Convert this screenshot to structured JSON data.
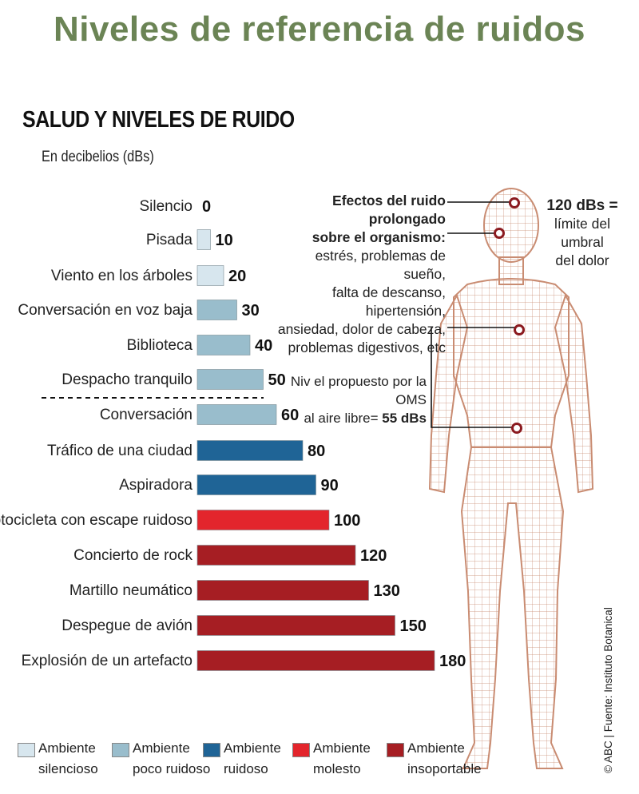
{
  "page_title": "Niveles de referencia de ruidos",
  "chart_data": {
    "type": "bar",
    "title": "SALUD Y NIVELES DE RUIDO",
    "subtitle": "En decibelios (dBs)",
    "unit": "dB",
    "categories": [
      "Silencio",
      "Pisada",
      "Viento en los árboles",
      "Conversación en voz baja",
      "Biblioteca",
      "Despacho tranquilo",
      "Conversación",
      "Tráfico de una ciudad",
      "Aspiradora",
      "Motocicleta con escape ruidoso",
      "Concierto de rock",
      "Martillo neumático",
      "Despegue de avión",
      "Explosión de un artefacto"
    ],
    "values": [
      0,
      10,
      20,
      30,
      40,
      50,
      60,
      80,
      90,
      100,
      120,
      130,
      150,
      180
    ],
    "groups": [
      0,
      0,
      0,
      1,
      1,
      1,
      1,
      2,
      2,
      3,
      4,
      4,
      4,
      4
    ],
    "group_colors": [
      "#d7e6ee",
      "#99bdcc",
      "#1f6496",
      "#e3252c",
      "#a61e23"
    ],
    "legend": [
      {
        "line1": "Ambiente",
        "line2": "silencioso"
      },
      {
        "line1": "Ambiente",
        "line2": "poco ruidoso"
      },
      {
        "line1": "Ambiente",
        "line2": "ruidoso"
      },
      {
        "line1": "Ambiente",
        "line2": "molesto"
      },
      {
        "line1": "Ambiente",
        "line2": "insoportable"
      }
    ],
    "legend_placement": "bottom",
    "grid": false
  },
  "annotations": {
    "effects_title_1": "Efectos del ruido prolongado",
    "effects_title_2": "sobre el  organismo:",
    "effects_lines": [
      "estrés, problemas de sueño,",
      "falta de descanso, hipertensión,",
      "ansiedad, dolor de cabeza,",
      "problemas digestivos, etc"
    ],
    "threshold_value": "120 dBs =",
    "threshold_lines": [
      "límite del",
      "umbral",
      "del dolor"
    ],
    "oms_line1": "Niv el propuesto por la OMS",
    "oms_line2_prefix": "al aire libre=",
    "oms_line2_value": "55 dBs"
  },
  "source": "© ABC | Fuente: Instituto Botanical",
  "colors": {
    "title_green": "#6b8455",
    "body_outline": "#c98c72",
    "body_fill": "#f3ddd0",
    "marker": "#8b1a1f"
  }
}
